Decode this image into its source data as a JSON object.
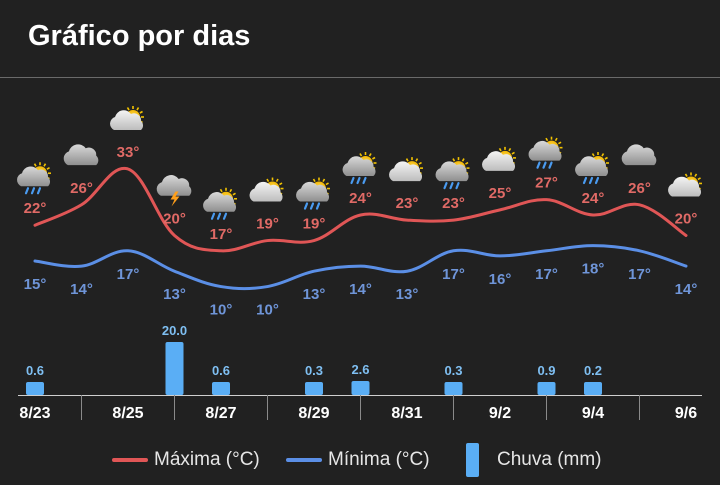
{
  "header": {
    "title": "Gráfico por dias"
  },
  "legend": {
    "max_label": "Máxima (°C)",
    "min_label": "Mínima (°C)",
    "rain_label": "Chuva (mm)"
  },
  "colors": {
    "max": "#e05656",
    "min": "#5b8fe6",
    "rain": "#5aaef5",
    "max_text": "#e06a66",
    "min_text": "#6f95d8",
    "rain_text": "#7fbff2"
  },
  "chart_data": {
    "type": "line",
    "x_tick_labels": [
      "8/23",
      "8/25",
      "8/27",
      "8/29",
      "8/31",
      "9/2",
      "9/4",
      "9/6"
    ],
    "days": [
      "8/23",
      "8/24",
      "8/25",
      "8/26",
      "8/27",
      "8/28",
      "8/29",
      "8/30",
      "8/31",
      "9/1",
      "9/2",
      "9/3",
      "9/4",
      "9/5",
      "9/6"
    ],
    "series": [
      {
        "name": "Máxima (°C)",
        "values": [
          22,
          26,
          33,
          20,
          17,
          19,
          19,
          24,
          23,
          23,
          25,
          27,
          24,
          26,
          20
        ],
        "labels": [
          "22°",
          "26°",
          "33°",
          "20°",
          "17°",
          "19°",
          "19°",
          "24°",
          "23°",
          "23°",
          "25°",
          "27°",
          "24°",
          "26°",
          "20°"
        ]
      },
      {
        "name": "Mínima (°C)",
        "values": [
          15,
          14,
          17,
          13,
          10,
          10,
          13,
          14,
          13,
          17,
          16,
          17,
          18,
          17,
          14
        ],
        "labels": [
          "15°",
          "14°",
          "17°",
          "13°",
          "10°",
          "10°",
          "13°",
          "14°",
          "13°",
          "17°",
          "16°",
          "17°",
          "18°",
          "17°",
          "14°"
        ]
      },
      {
        "name": "Chuva (mm)",
        "values": [
          0.6,
          0,
          0,
          20.0,
          0.6,
          0,
          0.3,
          2.6,
          0,
          0.3,
          0,
          0.9,
          0.2,
          0,
          0
        ],
        "labels": [
          "0.6",
          "",
          "",
          "20.0",
          "0.6",
          "",
          "0.3",
          "2.6",
          "",
          "0.3",
          "",
          "0.9",
          "0.2",
          "",
          ""
        ]
      }
    ],
    "weather_icons": [
      "sun-cloud-rain-icon",
      "cloud-icon",
      "sun-cloud-icon",
      "cloud-lightning-icon",
      "sun-cloud-rain-icon",
      "sun-cloud-icon",
      "sun-cloud-rain-icon",
      "sun-cloud-rain-icon",
      "sun-cloud-icon",
      "sun-cloud-rain-icon",
      "sun-cloud-icon",
      "sun-cloud-rain-icon",
      "sun-cloud-rain-icon",
      "cloud-icon",
      "sun-cloud-icon"
    ],
    "grid": false
  }
}
